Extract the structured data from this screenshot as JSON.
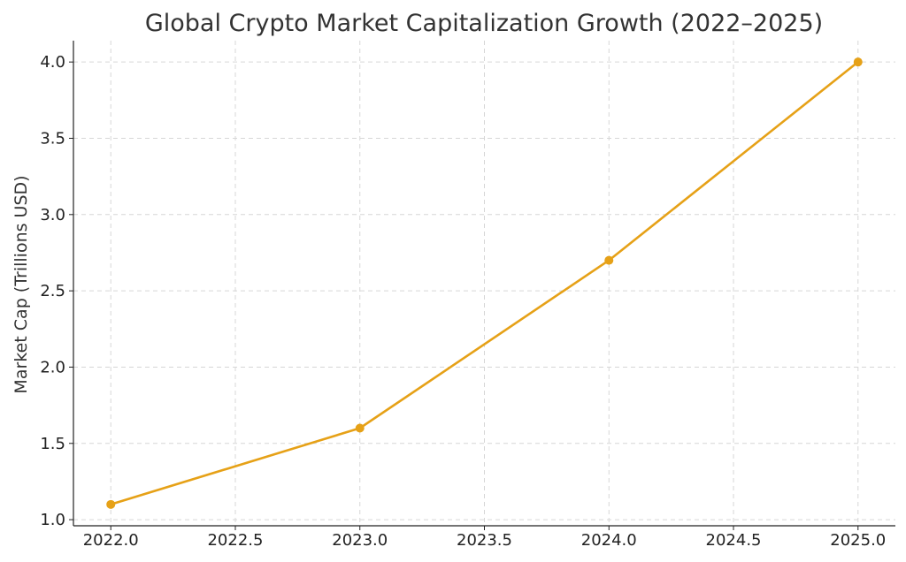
{
  "chart_data": {
    "type": "line",
    "title": "Global Crypto Market Capitalization Growth (2022–2025)",
    "xlabel": "",
    "ylabel": "Market Cap (Trillions USD)",
    "x": [
      2022.0,
      2023.0,
      2024.0,
      2025.0
    ],
    "series": [
      {
        "values": [
          1.1,
          1.6,
          2.7,
          4.0
        ],
        "color": "#e6a117",
        "marker": "circle"
      }
    ],
    "xlim": [
      2021.85,
      2025.15
    ],
    "ylim": [
      0.96,
      4.14
    ],
    "xticks": [
      2022.0,
      2022.5,
      2023.0,
      2023.5,
      2024.0,
      2024.5,
      2025.0
    ],
    "xtick_labels": [
      "2022.0",
      "2022.5",
      "2023.0",
      "2023.5",
      "2024.0",
      "2024.5",
      "2025.0"
    ],
    "yticks": [
      1.0,
      1.5,
      2.0,
      2.5,
      3.0,
      3.5,
      4.0
    ],
    "ytick_labels": [
      "1.0",
      "1.5",
      "2.0",
      "2.5",
      "3.0",
      "3.5",
      "4.0"
    ],
    "grid": true,
    "legend": "none"
  }
}
